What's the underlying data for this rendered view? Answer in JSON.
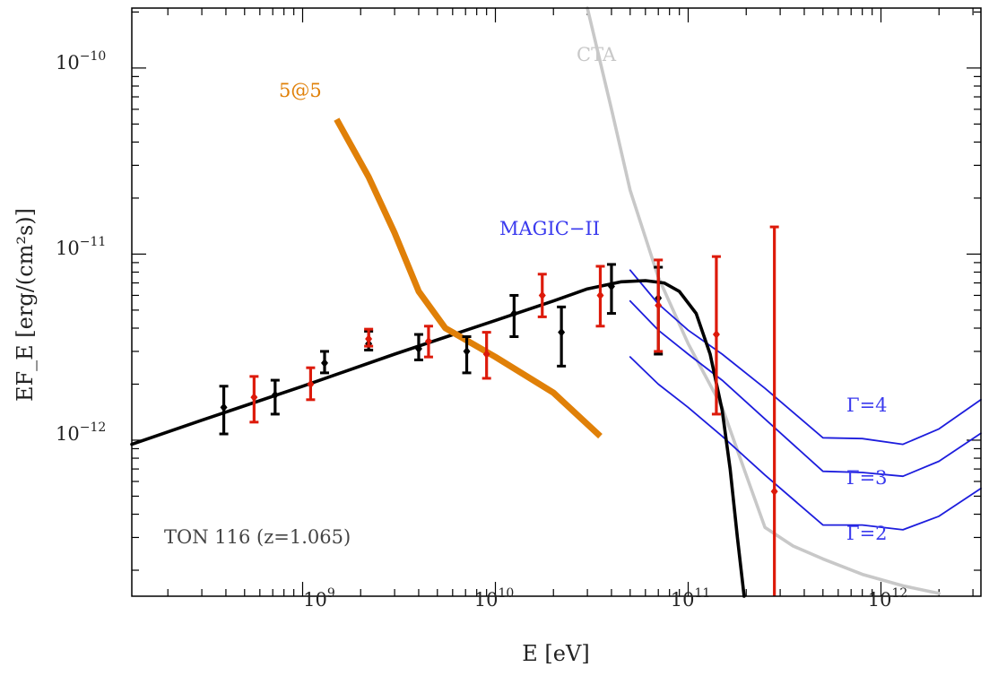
{
  "chart_data": {
    "type": "line",
    "xscale": "log",
    "yscale": "log",
    "xlim": [
      130000000.0,
      3300000000000.0
    ],
    "ylim": [
      1.45e-13,
      2.1e-10
    ],
    "xlabel": "E [eV]",
    "ylabel": "EF_E [erg/(cm²s)]",
    "x_ticks": [
      {
        "base": "10",
        "exp": "9",
        "value": 1000000000.0
      },
      {
        "base": "10",
        "exp": "10",
        "value": 10000000000.0
      },
      {
        "base": "10",
        "exp": "11",
        "value": 100000000000.0
      },
      {
        "base": "10",
        "exp": "12",
        "value": 1000000000000.0
      }
    ],
    "y_ticks": [
      {
        "base": "10",
        "exp": "−12",
        "value": 1e-12
      },
      {
        "base": "10",
        "exp": "−11",
        "value": 1e-11
      },
      {
        "base": "10",
        "exp": "−10",
        "value": 1e-10
      }
    ],
    "annotations": {
      "source": "TON 116 (z=1.065)",
      "cta": "CTA",
      "magic": "MAGIC−II",
      "fivefive": "5@5",
      "gamma4": "Γ=4",
      "gamma3": "Γ=3",
      "gamma2": "Γ=2"
    },
    "colors": {
      "model": "#000000",
      "black_points": "#000000",
      "red_points": "#dd1a0a",
      "fivefive": "#e08008",
      "cta": "#c8c8c8",
      "magic": "#1d1ddd",
      "frame": "#000000"
    },
    "series": [
      {
        "name": "model",
        "x": [
          130000000.0,
          300000000.0,
          1000000000.0,
          3000000000.0,
          10000000000.0,
          20000000000.0,
          30000000000.0,
          45000000000.0,
          60000000000.0,
          75000000000.0,
          90000000000.0,
          110000000000.0,
          130000000000.0,
          150000000000.0,
          165000000000.0,
          180000000000.0,
          195000000000.0
        ],
        "y": [
          9.5e-13,
          1.28e-12,
          1.95e-12,
          2.9e-12,
          4.4e-12,
          5.6e-12,
          6.5e-12,
          7.1e-12,
          7.2e-12,
          7e-12,
          6.3e-12,
          4.8e-12,
          2.9e-12,
          1.45e-12,
          7e-13,
          3e-13,
          1.45e-13
        ]
      },
      {
        "name": "5@5",
        "x": [
          1500000000.0,
          2200000000.0,
          3000000000.0,
          4000000000.0,
          5500000000.0,
          10000000000.0,
          20000000000.0,
          35000000000.0
        ],
        "y": [
          5.3e-11,
          2.6e-11,
          1.3e-11,
          6.3e-12,
          4e-12,
          2.8e-12,
          1.8e-12,
          1.05e-12
        ]
      },
      {
        "name": "CTA",
        "x": [
          30000000000.0,
          40000000000.0,
          50000000000.0,
          70000000000.0,
          100000000000.0,
          150000000000.0,
          200000000000.0,
          250000000000.0,
          350000000000.0,
          500000000000.0,
          800000000000.0,
          1300000000000.0,
          2000000000000.0
        ],
        "y": [
          2.3e-10,
          6e-11,
          2.2e-11,
          7.5e-12,
          3.3e-12,
          1.5e-12,
          6.5e-13,
          3.4e-13,
          2.7e-13,
          2.3e-13,
          1.9e-13,
          1.65e-13,
          1.5e-13
        ]
      },
      {
        "name": "MAGIC-II Γ=4",
        "x": [
          50000000000.0,
          70000000000.0,
          100000000000.0,
          150000000000.0,
          250000000000.0,
          500000000000.0,
          800000000000.0,
          1300000000000.0,
          2000000000000.0,
          3300000000000.0
        ],
        "y": [
          8.2e-12,
          5.4e-12,
          3.9e-12,
          2.9e-12,
          1.9e-12,
          1.03e-12,
          1.02e-12,
          9.5e-13,
          1.15e-12,
          1.65e-12
        ]
      },
      {
        "name": "MAGIC-II Γ=3",
        "x": [
          50000000000.0,
          70000000000.0,
          100000000000.0,
          150000000000.0,
          250000000000.0,
          500000000000.0,
          800000000000.0,
          1300000000000.0,
          2000000000000.0,
          3300000000000.0
        ],
        "y": [
          5.6e-12,
          3.9e-12,
          2.9e-12,
          2.1e-12,
          1.3e-12,
          6.8e-13,
          6.7e-13,
          6.4e-13,
          7.7e-13,
          1.09e-12
        ]
      },
      {
        "name": "MAGIC-II Γ=2",
        "x": [
          50000000000.0,
          70000000000.0,
          100000000000.0,
          150000000000.0,
          250000000000.0,
          500000000000.0,
          800000000000.0,
          1300000000000.0,
          2000000000000.0,
          3300000000000.0
        ],
        "y": [
          2.8e-12,
          2e-12,
          1.5e-12,
          1.05e-12,
          6.5e-13,
          3.5e-13,
          3.5e-13,
          3.3e-13,
          3.9e-13,
          5.5e-13
        ]
      }
    ],
    "black_points": [
      {
        "x": 390000000.0,
        "y": 1.5e-12,
        "lo": 1.08e-12,
        "hi": 1.95e-12
      },
      {
        "x": 720000000.0,
        "y": 1.75e-12,
        "lo": 1.38e-12,
        "hi": 2.1e-12
      },
      {
        "x": 1300000000.0,
        "y": 2.6e-12,
        "lo": 2.3e-12,
        "hi": 3e-12
      },
      {
        "x": 2200000000.0,
        "y": 3.3e-12,
        "lo": 3.05e-12,
        "hi": 3.85e-12
      },
      {
        "x": 4000000000.0,
        "y": 3.1e-12,
        "lo": 2.7e-12,
        "hi": 3.7e-12
      },
      {
        "x": 7100000000.0,
        "y": 3e-12,
        "lo": 2.3e-12,
        "hi": 3.6e-12
      },
      {
        "x": 12500000000.0,
        "y": 4.8e-12,
        "lo": 3.6e-12,
        "hi": 6e-12
      },
      {
        "x": 22000000000.0,
        "y": 3.8e-12,
        "lo": 2.5e-12,
        "hi": 5.2e-12
      },
      {
        "x": 40000000000.0,
        "y": 6.7e-12,
        "lo": 4.8e-12,
        "hi": 8.8e-12
      },
      {
        "x": 70000000000.0,
        "y": 5.8e-12,
        "lo": 2.9e-12,
        "hi": 8.5e-12
      }
    ],
    "red_points": [
      {
        "x": 560000000.0,
        "y": 1.7e-12,
        "lo": 1.25e-12,
        "hi": 2.2e-12
      },
      {
        "x": 1100000000.0,
        "y": 2e-12,
        "lo": 1.65e-12,
        "hi": 2.45e-12
      },
      {
        "x": 2200000000.0,
        "y": 3.5e-12,
        "lo": 3.2e-12,
        "hi": 3.95e-12
      },
      {
        "x": 4500000000.0,
        "y": 3.4e-12,
        "lo": 2.8e-12,
        "hi": 4.1e-12
      },
      {
        "x": 9000000000.0,
        "y": 2.9e-12,
        "lo": 2.15e-12,
        "hi": 3.8e-12
      },
      {
        "x": 17500000000.0,
        "y": 6e-12,
        "lo": 4.6e-12,
        "hi": 7.8e-12
      },
      {
        "x": 35000000000.0,
        "y": 6e-12,
        "lo": 4.1e-12,
        "hi": 8.6e-12
      },
      {
        "x": 70000000000.0,
        "y": 5.3e-12,
        "lo": 3e-12,
        "hi": 9.3e-12
      },
      {
        "x": 140000000000.0,
        "y": 3.7e-12,
        "lo": 1.38e-12,
        "hi": 9.7e-12
      },
      {
        "x": 280000000000.0,
        "y": 5.3e-13,
        "lo": 1.45e-13,
        "hi": 1.4e-11
      }
    ]
  }
}
